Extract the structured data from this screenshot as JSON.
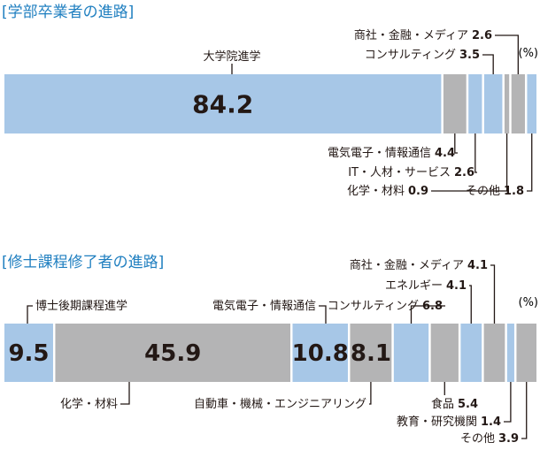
{
  "colors": {
    "blue": "#a7c7e7",
    "gray": "#b4b4b5",
    "title": "#1f7fc0",
    "text": "#231815",
    "line": "#231815"
  },
  "chart_data": [
    {
      "type": "bar",
      "stacked": "horizontal-100",
      "title": "[学部卒業者の進路]",
      "unit": "(%)",
      "categories": [
        "大学院進学",
        "電気電子・情報通信",
        "IT・人材・サービス",
        "コンサルティング",
        "化学・材料",
        "商社・金融・メディア",
        "その他"
      ],
      "values": [
        84.2,
        4.4,
        2.6,
        3.5,
        0.9,
        2.6,
        1.8
      ],
      "value_text": [
        "84.2",
        "4.4",
        "2.6",
        "3.5",
        "0.9",
        "2.6",
        "1.8"
      ],
      "colors": [
        "blue",
        "gray",
        "blue",
        "blue",
        "gray",
        "gray",
        "blue"
      ],
      "labels": [
        "大学院進学",
        "電気電子・情報通信",
        "IT・人材・サービス",
        "コンサルティング",
        "化学・材料",
        "商社・金融・メディア",
        "その他"
      ]
    },
    {
      "type": "bar",
      "stacked": "horizontal-100",
      "title": "[修士課程修了者の進路]",
      "unit": "(%)",
      "categories": [
        "博士後期課程進学",
        "化学・材料",
        "電気電子・情報通信",
        "自動車・機械・エンジニアリング",
        "コンサルティング",
        "食品",
        "エネルギー",
        "商社・金融・メディア",
        "教育・研究機関",
        "その他"
      ],
      "values": [
        9.5,
        45.9,
        10.8,
        8.1,
        6.8,
        5.4,
        4.1,
        4.1,
        1.4,
        3.9
      ],
      "value_text": [
        "9.5",
        "45.9",
        "10.8",
        "8.1",
        "6.8",
        "5.4",
        "4.1",
        "4.1",
        "1.4",
        "3.9"
      ],
      "colors": [
        "blue",
        "gray",
        "blue",
        "gray",
        "blue",
        "gray",
        "blue",
        "gray",
        "blue",
        "gray"
      ],
      "labels": [
        "博士後期課程進学",
        "化学・材料",
        "電気電子・情報通信",
        "自動車・機械・エンジニアリング",
        "コンサルティング",
        "食品",
        "エネルギー",
        "商社・金融・メディア",
        "教育・研究機関",
        "その他"
      ]
    }
  ]
}
